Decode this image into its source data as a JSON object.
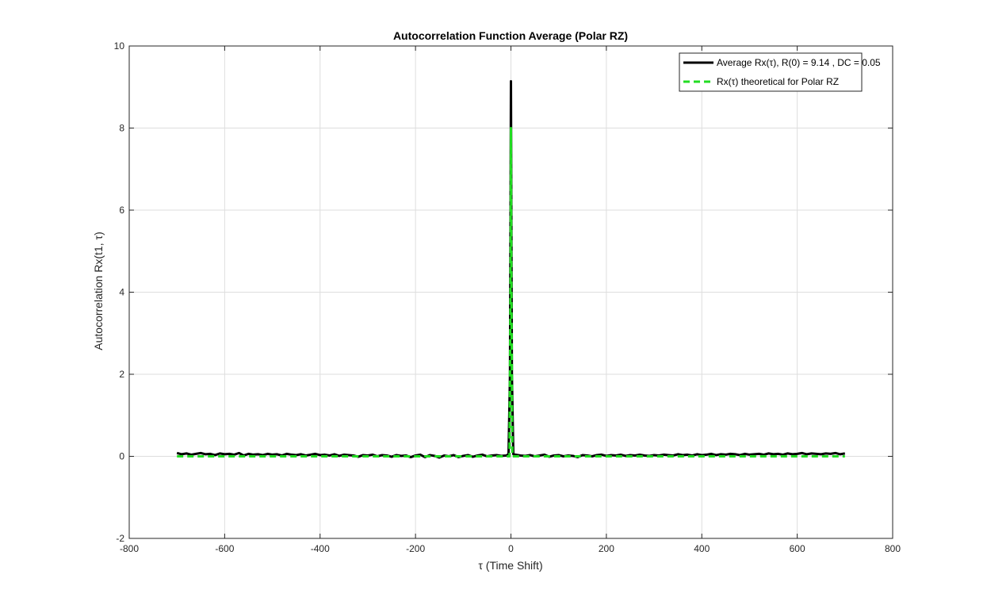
{
  "chart_data": {
    "type": "line",
    "title": "Autocorrelation Function Average (Polar RZ)",
    "xlabel": "τ (Time Shift)",
    "ylabel": "Autocorrelation Rx(t1, τ)",
    "xlim": [
      -800,
      800
    ],
    "ylim": [
      -2,
      10
    ],
    "xticks": [
      -800,
      -600,
      -400,
      -200,
      0,
      200,
      400,
      600,
      800
    ],
    "yticks": [
      -2,
      0,
      2,
      4,
      6,
      8,
      10
    ],
    "grid": true,
    "legend_position": "top-right",
    "series": [
      {
        "name": "Average Rx(τ), R(0) = 9.14 , DC = 0.05",
        "color": "#000000",
        "style": "solid",
        "x": [
          -700,
          -690,
          -680,
          -670,
          -660,
          -650,
          -640,
          -630,
          -620,
          -610,
          -600,
          -590,
          -580,
          -570,
          -560,
          -550,
          -540,
          -530,
          -520,
          -510,
          -500,
          -490,
          -480,
          -470,
          -460,
          -450,
          -440,
          -430,
          -420,
          -410,
          -400,
          -390,
          -380,
          -370,
          -360,
          -350,
          -340,
          -330,
          -320,
          -310,
          -300,
          -290,
          -280,
          -270,
          -260,
          -250,
          -240,
          -230,
          -220,
          -210,
          -200,
          -190,
          -180,
          -170,
          -160,
          -150,
          -140,
          -130,
          -120,
          -110,
          -100,
          -90,
          -80,
          -70,
          -60,
          -50,
          -40,
          -30,
          -20,
          -10,
          -5,
          -2,
          0,
          2,
          5,
          10,
          20,
          30,
          40,
          50,
          60,
          70,
          80,
          90,
          100,
          110,
          120,
          130,
          140,
          150,
          160,
          170,
          180,
          190,
          200,
          210,
          220,
          230,
          240,
          250,
          260,
          270,
          280,
          290,
          300,
          310,
          320,
          330,
          340,
          350,
          360,
          370,
          380,
          390,
          400,
          410,
          420,
          430,
          440,
          450,
          460,
          470,
          480,
          490,
          500,
          510,
          520,
          530,
          540,
          550,
          560,
          570,
          580,
          590,
          600,
          610,
          620,
          630,
          640,
          650,
          660,
          670,
          680,
          690,
          700
        ],
        "y": [
          0.08,
          0.05,
          0.07,
          0.04,
          0.06,
          0.08,
          0.05,
          0.06,
          0.03,
          0.07,
          0.05,
          0.06,
          0.04,
          0.08,
          0.02,
          0.06,
          0.04,
          0.05,
          0.03,
          0.06,
          0.04,
          0.05,
          0.02,
          0.06,
          0.04,
          0.03,
          0.05,
          0.02,
          0.04,
          0.06,
          0.03,
          0.04,
          0.02,
          0.05,
          0.01,
          0.04,
          0.03,
          0.02,
          -0.01,
          0.03,
          0.02,
          0.04,
          0.0,
          0.03,
          0.02,
          -0.01,
          0.03,
          0.01,
          0.02,
          -0.02,
          0.02,
          0.04,
          -0.02,
          0.03,
          0.01,
          -0.03,
          0.02,
          0.0,
          0.03,
          -0.02,
          0.01,
          0.03,
          -0.01,
          0.02,
          0.04,
          0.0,
          0.02,
          0.03,
          0.01,
          0.02,
          0.05,
          2.0,
          9.14,
          2.0,
          0.05,
          0.04,
          0.02,
          0.01,
          0.03,
          0.0,
          0.02,
          0.04,
          -0.01,
          0.02,
          0.03,
          0.0,
          0.02,
          0.01,
          -0.02,
          0.03,
          0.02,
          0.0,
          0.03,
          0.04,
          0.01,
          0.03,
          0.02,
          0.04,
          0.01,
          0.03,
          0.02,
          0.04,
          0.02,
          0.01,
          0.03,
          0.02,
          0.04,
          0.03,
          0.02,
          0.05,
          0.03,
          0.04,
          0.02,
          0.05,
          0.03,
          0.04,
          0.06,
          0.03,
          0.05,
          0.04,
          0.06,
          0.05,
          0.03,
          0.06,
          0.04,
          0.05,
          0.06,
          0.04,
          0.07,
          0.05,
          0.06,
          0.04,
          0.07,
          0.05,
          0.06,
          0.08,
          0.05,
          0.07,
          0.06,
          0.05,
          0.07,
          0.06,
          0.08,
          0.05,
          0.07
        ]
      },
      {
        "name": "Rx(τ) theoretical for Polar RZ",
        "color": "#22dd22",
        "style": "dashed",
        "x": [
          -700,
          -3,
          -1,
          0,
          1,
          3,
          700
        ],
        "y": [
          0,
          0,
          4,
          8,
          4,
          0,
          0
        ]
      }
    ]
  }
}
